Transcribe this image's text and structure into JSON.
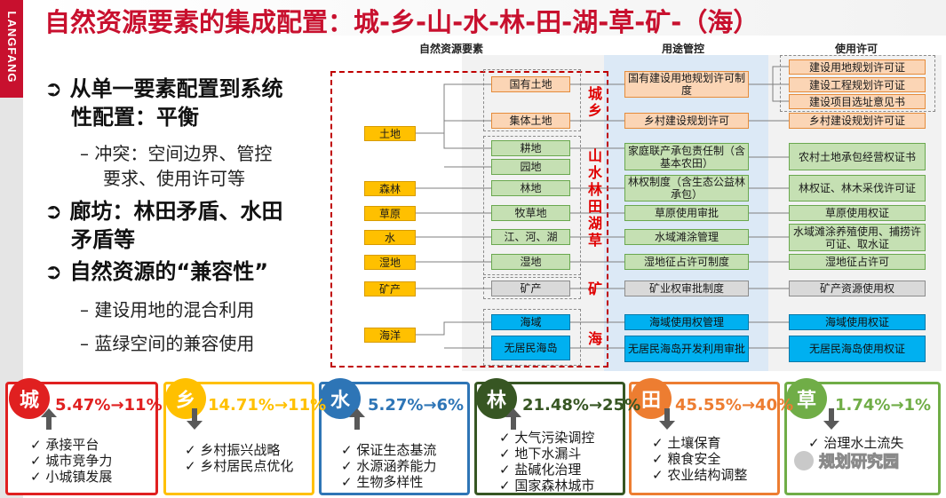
{
  "sidebar": {
    "label": "LANGFANG"
  },
  "title": "自然资源要素的集成配置：城-乡-山-水-林-田-湖-草-矿-（海）",
  "left": {
    "b1": "从单一要素配置到系统",
    "b1b": "性配置：平衡",
    "s1a": "– 冲突：空间边界、管控",
    "s1b": "要求、使用许可等",
    "b2": "廊坊：林田矛盾、水田",
    "b2b": "矛盾等",
    "b3": "自然资源的“兼容性”",
    "s3a": "– 建设用地的混合利用",
    "s3b": "– 蓝绿空间的兼容使用"
  },
  "diagram": {
    "headers": {
      "elements": "自然资源要素",
      "control": "用途管控",
      "permit": "使用许可"
    },
    "left_boxes": [
      "土地",
      "森林",
      "草原",
      "水",
      "湿地",
      "矿产",
      "海洋"
    ],
    "mid_boxes": [
      "国有土地",
      "集体土地",
      "耕地",
      "园地",
      "林地",
      "牧草地",
      "江、河、湖",
      "湿地",
      "矿产",
      "海域",
      "无居民海岛"
    ],
    "labels": {
      "chengxiang": "城乡",
      "shan": "山水林田湖草",
      "kuang": "矿",
      "hai": "海"
    },
    "control_boxes": [
      "国有建设用地规划许可制度",
      "乡村建设规划许可",
      "家庭联产承包责任制（含基本农田）",
      "林权制度（含生态公益林承包）",
      "草原使用审批",
      "水域滩涂管理",
      "湿地征占许可制度",
      "矿业权审批制度",
      "海域使用权管理",
      "无居民海岛开发利用审批"
    ],
    "permit_boxes": [
      "建设用地规划许可证",
      "建设工程规划许可证",
      "建设项目选址意见书",
      "乡村建设规划许可证",
      "农村土地承包经营权证书",
      "林权证、林木采伐许可证",
      "草原使用权证",
      "水域滩涂养殖使用、捕捞许可证、取水证",
      "湿地征占许可",
      "矿产资源使用权",
      "海域使用权证",
      "无居民海岛使用权证"
    ]
  },
  "cards": [
    {
      "char": "城",
      "change": "5.47%→11%",
      "color": "#e02020",
      "direction": "up",
      "items": [
        "承接平台",
        "城市竞争力",
        "小城镇发展"
      ]
    },
    {
      "char": "乡",
      "change": "14.71%→11%",
      "color": "#ffc000",
      "direction": "down",
      "items": [
        "乡村振兴战略",
        "乡村居民点优化"
      ]
    },
    {
      "char": "水",
      "change": "5.27%→6%",
      "color": "#2e75b6",
      "direction": "up",
      "items": [
        "保证生态基流",
        "水源涵养能力",
        "生物多样性"
      ]
    },
    {
      "char": "林",
      "change": "21.48%→25%",
      "color": "#375623",
      "direction": "up",
      "items": [
        "大气污染调控",
        "地下水漏斗",
        "盐碱化治理",
        "国家森林城市"
      ]
    },
    {
      "char": "田",
      "change": "45.55%→40%",
      "color": "#ed7d31",
      "direction": "down",
      "items": [
        "土壤保育",
        "粮食安全",
        "农业结构调整"
      ]
    },
    {
      "char": "草",
      "change": "1.74%→1%",
      "color": "#70ad47",
      "direction": "down",
      "items": [
        "治理水土流失"
      ]
    }
  ],
  "watermark": "规划研究园"
}
